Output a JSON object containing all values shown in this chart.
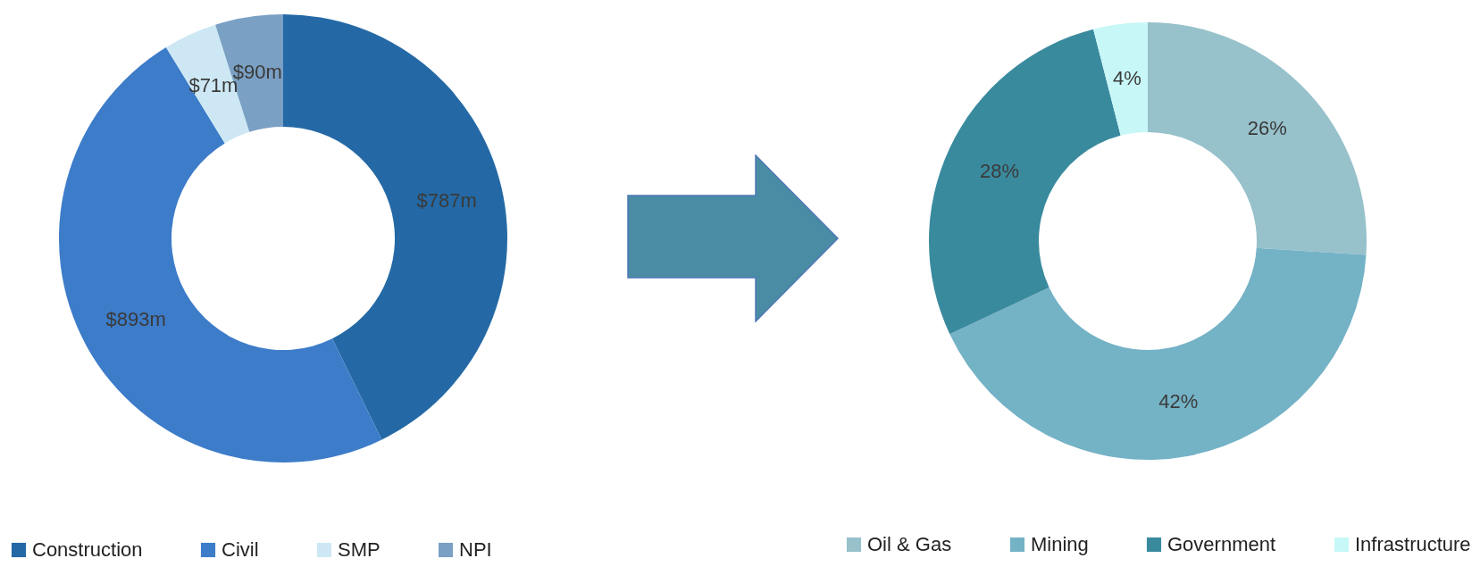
{
  "chart_data": [
    {
      "type": "donut",
      "categories": [
        "Construction",
        "Civil",
        "SMP",
        "NPI"
      ],
      "values": [
        787,
        893,
        71,
        90
      ],
      "colors": [
        "#2469a5",
        "#3d7cc9",
        "#cde8f4",
        "#7aa0c4"
      ],
      "value_labels": [
        "$787m",
        "$893m",
        "$71m",
        "$90m"
      ],
      "legend": "bottom left"
    },
    {
      "type": "donut",
      "categories": [
        "Oil & Gas",
        "Mining",
        "Government",
        "Infrastructure"
      ],
      "values": [
        26,
        42,
        28,
        4
      ],
      "colors": [
        "#97c1cb",
        "#74b2c6",
        "#3a8a9e",
        "#c8f7f7"
      ],
      "value_labels": [
        "26%",
        "42%",
        "28%",
        "4%"
      ],
      "legend": "bottom right"
    }
  ]
}
